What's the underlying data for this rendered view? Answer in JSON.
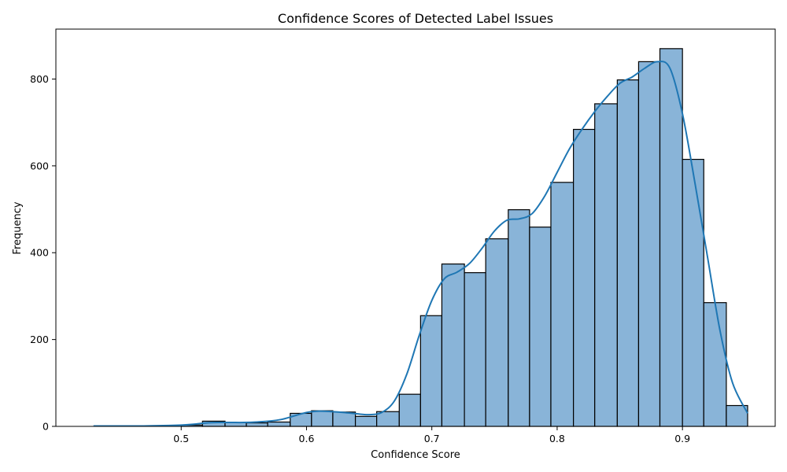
{
  "chart_data": {
    "type": "bar",
    "subtype": "histogram-with-kde",
    "title": "Confidence Scores of Detected Label Issues",
    "xlabel": "Confidence Score",
    "ylabel": "Frequency",
    "xlim": [
      0.4,
      0.974
    ],
    "ylim": [
      0,
      915
    ],
    "xticks": [
      0.5,
      0.6,
      0.7,
      0.8,
      0.9
    ],
    "xtick_labels": [
      "0.5",
      "0.6",
      "0.7",
      "0.8",
      "0.9"
    ],
    "yticks": [
      0,
      200,
      400,
      600,
      800
    ],
    "ytick_labels": [
      "0",
      "200",
      "400",
      "600",
      "800"
    ],
    "grid": false,
    "colors": {
      "bar_fill": "#89b4d8",
      "bar_edge": "#000000",
      "kde": "#1f77b4"
    },
    "bins": [
      {
        "x0": 0.43,
        "x1": 0.447,
        "count": 0
      },
      {
        "x0": 0.447,
        "x1": 0.465,
        "count": 0
      },
      {
        "x0": 0.465,
        "x1": 0.482,
        "count": 0
      },
      {
        "x0": 0.482,
        "x1": 0.5,
        "count": 0
      },
      {
        "x0": 0.5,
        "x1": 0.517,
        "count": 3
      },
      {
        "x0": 0.517,
        "x1": 0.535,
        "count": 12
      },
      {
        "x0": 0.535,
        "x1": 0.552,
        "count": 9
      },
      {
        "x0": 0.552,
        "x1": 0.569,
        "count": 8
      },
      {
        "x0": 0.569,
        "x1": 0.587,
        "count": 10
      },
      {
        "x0": 0.587,
        "x1": 0.604,
        "count": 30
      },
      {
        "x0": 0.604,
        "x1": 0.621,
        "count": 36
      },
      {
        "x0": 0.621,
        "x1": 0.639,
        "count": 33
      },
      {
        "x0": 0.639,
        "x1": 0.656,
        "count": 23
      },
      {
        "x0": 0.656,
        "x1": 0.674,
        "count": 34
      },
      {
        "x0": 0.674,
        "x1": 0.691,
        "count": 74
      },
      {
        "x0": 0.691,
        "x1": 0.708,
        "count": 255
      },
      {
        "x0": 0.708,
        "x1": 0.726,
        "count": 374
      },
      {
        "x0": 0.726,
        "x1": 0.743,
        "count": 354
      },
      {
        "x0": 0.743,
        "x1": 0.761,
        "count": 432
      },
      {
        "x0": 0.761,
        "x1": 0.778,
        "count": 499
      },
      {
        "x0": 0.778,
        "x1": 0.795,
        "count": 459
      },
      {
        "x0": 0.795,
        "x1": 0.813,
        "count": 562
      },
      {
        "x0": 0.813,
        "x1": 0.83,
        "count": 684
      },
      {
        "x0": 0.83,
        "x1": 0.848,
        "count": 743
      },
      {
        "x0": 0.848,
        "x1": 0.865,
        "count": 798
      },
      {
        "x0": 0.865,
        "x1": 0.882,
        "count": 840
      },
      {
        "x0": 0.882,
        "x1": 0.9,
        "count": 870
      },
      {
        "x0": 0.9,
        "x1": 0.917,
        "count": 615
      },
      {
        "x0": 0.917,
        "x1": 0.935,
        "count": 285
      },
      {
        "x0": 0.935,
        "x1": 0.952,
        "count": 48
      }
    ],
    "kde": {
      "x": [
        0.43,
        0.45,
        0.47,
        0.49,
        0.5,
        0.51,
        0.52,
        0.53,
        0.54,
        0.55,
        0.56,
        0.57,
        0.58,
        0.59,
        0.6,
        0.61,
        0.62,
        0.63,
        0.64,
        0.65,
        0.66,
        0.67,
        0.68,
        0.69,
        0.7,
        0.71,
        0.72,
        0.73,
        0.74,
        0.75,
        0.76,
        0.77,
        0.78,
        0.79,
        0.8,
        0.81,
        0.82,
        0.83,
        0.84,
        0.85,
        0.86,
        0.87,
        0.88,
        0.89,
        0.9,
        0.91,
        0.92,
        0.93,
        0.94,
        0.952
      ],
      "y": [
        1,
        1,
        1,
        2,
        3,
        5,
        8,
        9,
        9,
        9,
        10,
        12,
        16,
        24,
        32,
        35,
        34,
        32,
        29,
        27,
        32,
        58,
        120,
        210,
        290,
        340,
        355,
        375,
        410,
        450,
        475,
        478,
        490,
        530,
        585,
        640,
        685,
        725,
        760,
        790,
        805,
        825,
        840,
        825,
        720,
        560,
        390,
        220,
        100,
        30
      ]
    }
  }
}
